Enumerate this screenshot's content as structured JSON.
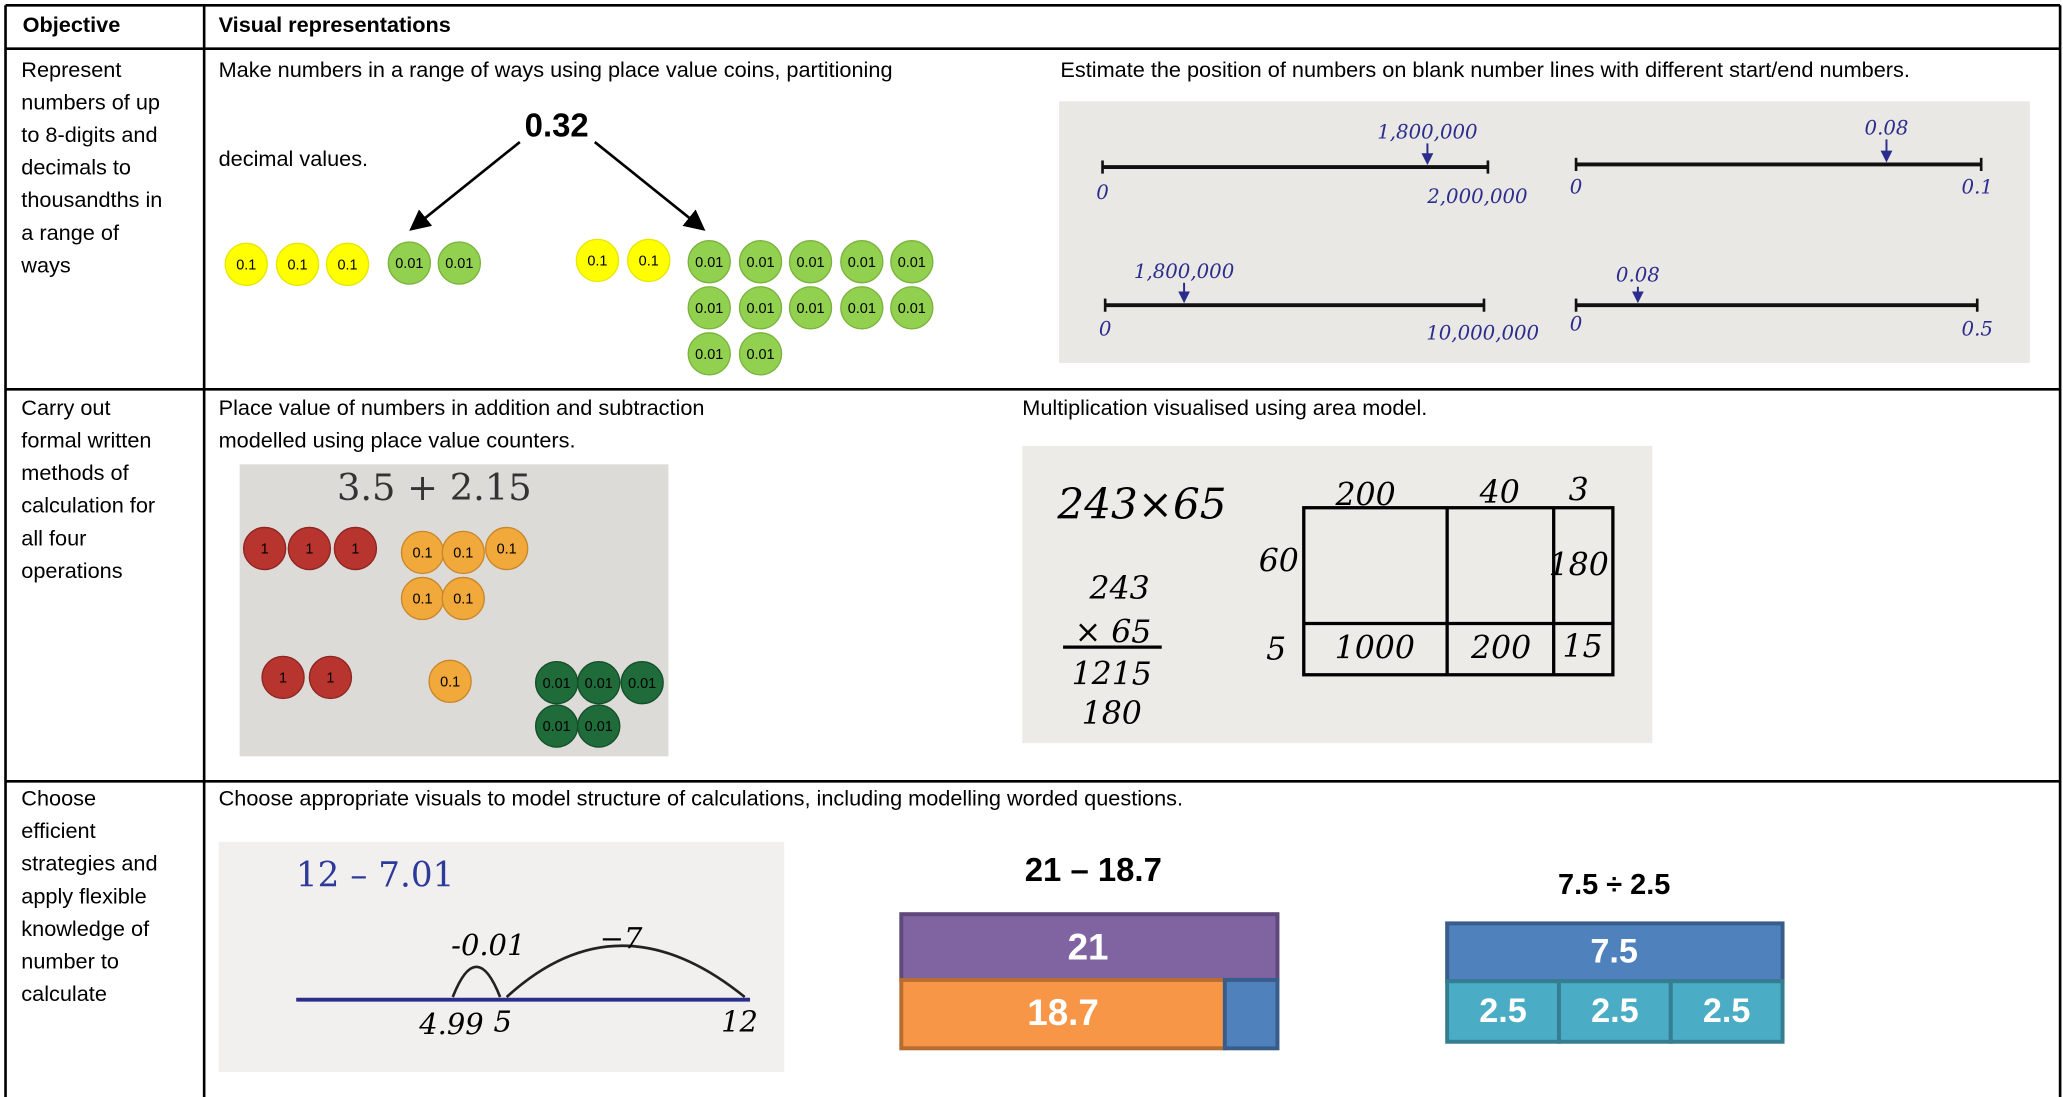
{
  "header": {
    "objective": "Objective",
    "visuals": "Visual representations"
  },
  "rows": [
    {
      "objective": [
        "Represent",
        "numbers of up",
        "to 8-digits and",
        "decimals to",
        "thousandths in",
        "a range of",
        "ways"
      ],
      "panels": [
        {
          "caption": [
            "Make numbers in a range of ways using place value coins, partitioning",
            "decimal values."
          ],
          "number": "0.32",
          "coins_left": [
            "0.1",
            "0.1",
            "0.1",
            "0.01",
            "0.01"
          ],
          "coins_right": [
            "0.1",
            "0.1",
            "0.01",
            "0.01",
            "0.01",
            "0.01",
            "0.01",
            "0.01",
            "0.01",
            "0.01",
            "0.01",
            "0.01",
            "0.01",
            "0.01"
          ]
        },
        {
          "caption": [
            "Estimate the position of numbers on blank number lines with different start/end numbers."
          ],
          "number_lines": [
            {
              "start": "0",
              "end": "2,000,000",
              "mark": "1,800,000"
            },
            {
              "start": "0",
              "end": "0.1",
              "mark": "0.08"
            },
            {
              "start": "0",
              "end": "10,000,000",
              "mark": "1,800,000"
            },
            {
              "start": "0",
              "end": "0.5",
              "mark": "0.08"
            }
          ]
        }
      ]
    },
    {
      "objective": [
        "Carry out",
        "formal written",
        "methods of",
        "calculation for",
        "all four",
        "operations"
      ],
      "panels": [
        {
          "caption": [
            "Place value of numbers in addition and subtraction",
            "modelled using place value counters."
          ],
          "sum": "3.5 + 2.15",
          "counters": [
            "1",
            "1",
            "1",
            "0.1",
            "0.1",
            "0.1",
            "0.1",
            "0.1",
            "1",
            "1",
            "0.1",
            "0.01",
            "0.01",
            "0.01",
            "0.01",
            "0.01"
          ]
        },
        {
          "caption": [
            "Multiplication visualised using area model."
          ],
          "problem": "243×65",
          "column": [
            "243",
            "× 65",
            "1215",
            "180"
          ],
          "area_columns": [
            "200",
            "40",
            "3"
          ],
          "area_rows": [
            "60",
            "5"
          ],
          "area_cells": [
            "180",
            "1000",
            "200",
            "15"
          ]
        }
      ]
    },
    {
      "objective": [
        "Choose",
        "efficient",
        "strategies and",
        "apply flexible",
        "knowledge of",
        "number to",
        "calculate"
      ],
      "caption": "Choose appropriate visuals to model structure of calculations, including modelling worded questions.",
      "number_line": {
        "problem": "12 – 7.01",
        "jumps": [
          "-0.01",
          "−7"
        ],
        "points": [
          "4.99",
          "5",
          "12"
        ]
      },
      "bar_model": {
        "title": "21 – 18.7",
        "whole": "21",
        "part": "18.7"
      },
      "division_model": {
        "title": "7.5 ÷ 2.5",
        "whole": "7.5",
        "parts": [
          "2.5",
          "2.5",
          "2.5"
        ]
      }
    }
  ]
}
